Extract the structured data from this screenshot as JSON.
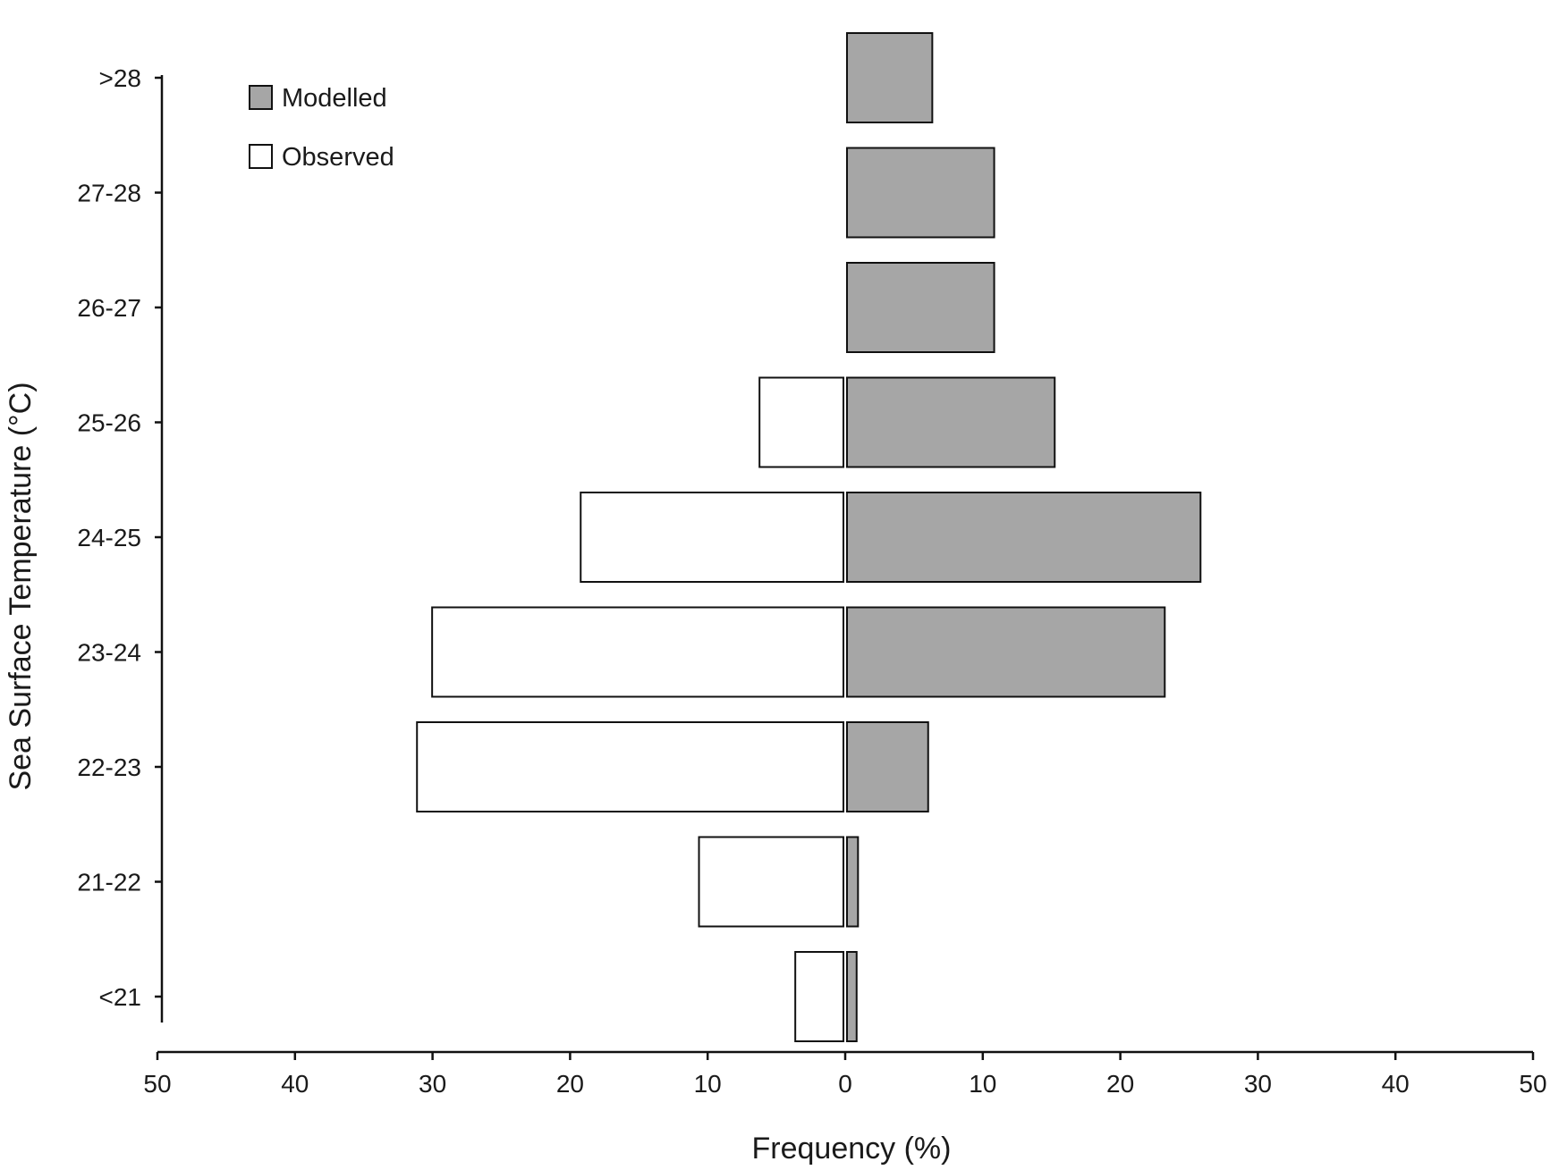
{
  "chart_data": {
    "type": "bar",
    "orientation": "horizontal",
    "layout": "back-to-back",
    "categories": [
      ">28",
      "27-28",
      "26-27",
      "25-26",
      "24-25",
      "23-24",
      "22-23",
      "21-22",
      "<21"
    ],
    "series": [
      {
        "name": "Modelled",
        "side": "right",
        "color": "#a6a6a6",
        "values": [
          6.2,
          10.7,
          10.7,
          15.1,
          25.7,
          23.1,
          5.9,
          0.8,
          0.7
        ]
      },
      {
        "name": "Observed",
        "side": "left",
        "color": "#ffffff",
        "values": [
          0,
          0,
          0,
          6.1,
          19.1,
          29.9,
          31.0,
          10.5,
          3.5
        ]
      }
    ],
    "xlabel": "Frequency (%)",
    "ylabel": "Sea Surface Temperature (°C)",
    "xlim": [
      -50,
      50
    ],
    "x_ticks": [
      "50",
      "40",
      "30",
      "20",
      "10",
      "0",
      "10",
      "20",
      "30",
      "40",
      "50"
    ],
    "legend_position": "top-left",
    "grid": false
  }
}
